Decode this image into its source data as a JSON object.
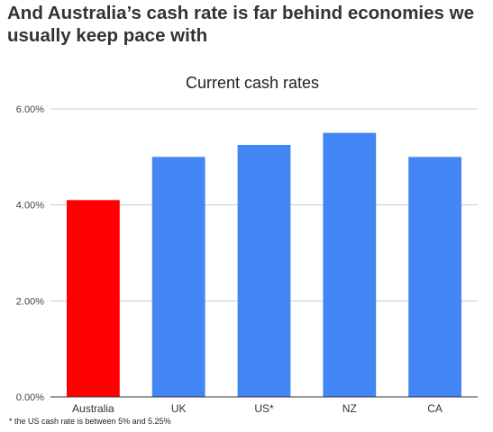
{
  "headline": "And Australia’s cash rate is far behind economies we usually keep pace with",
  "footnote": "* the US cash rate is between 5% and 5.25%",
  "colors": {
    "highlight": "#ff0000",
    "bar": "#4285f4",
    "gridline": "#cccccc",
    "axis": "#333333"
  },
  "chart_data": {
    "type": "bar",
    "title": "Current cash rates",
    "xlabel": "",
    "ylabel": "",
    "categories": [
      "Australia",
      "UK",
      "US*",
      "NZ",
      "CA"
    ],
    "values": [
      4.1,
      5.0,
      5.25,
      5.5,
      5.0
    ],
    "unit": "%",
    "ylim": [
      0,
      6
    ],
    "yticks": [
      0,
      2,
      4,
      6
    ],
    "ytick_labels": [
      "0.00%",
      "2.00%",
      "4.00%",
      "6.00%"
    ],
    "bar_colors": [
      "#ff0000",
      "#4285f4",
      "#4285f4",
      "#4285f4",
      "#4285f4"
    ],
    "grid": true,
    "legend": "none"
  }
}
